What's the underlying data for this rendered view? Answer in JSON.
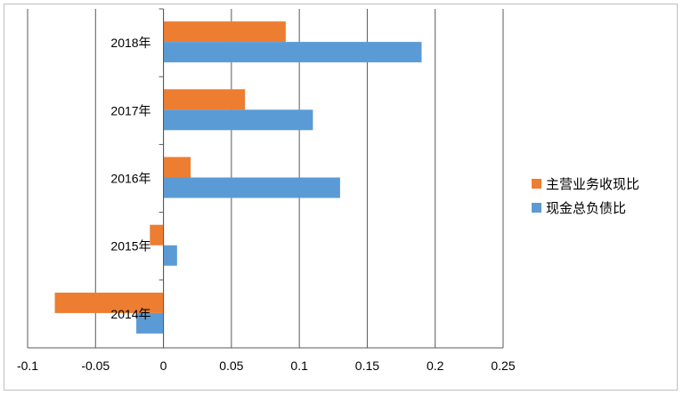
{
  "chart_data": {
    "type": "bar",
    "orientation": "horizontal",
    "categories": [
      "2014年",
      "2015年",
      "2016年",
      "2017年",
      "2018年"
    ],
    "series": [
      {
        "name": "现金总负债比",
        "color": "#5b9bd5",
        "values": [
          -0.02,
          0.01,
          0.13,
          0.11,
          0.19
        ]
      },
      {
        "name": "主营业务收现比",
        "color": "#ed7d31",
        "values": [
          -0.08,
          -0.01,
          0.02,
          0.06,
          0.09
        ]
      }
    ],
    "xlim": [
      -0.1,
      0.25
    ],
    "xticks": [
      -0.1,
      -0.05,
      0,
      0.05,
      0.1,
      0.15,
      0.2,
      0.25
    ],
    "xtick_labels": [
      "-0.1",
      "-0.05",
      "0",
      "0.05",
      "0.1",
      "0.15",
      "0.2",
      "0.25"
    ],
    "grid": "vertical major gridlines",
    "legend_position": "right",
    "legend_order": [
      "主营业务收现比",
      "现金总负债比"
    ],
    "title": "",
    "xlabel": "",
    "ylabel": ""
  }
}
